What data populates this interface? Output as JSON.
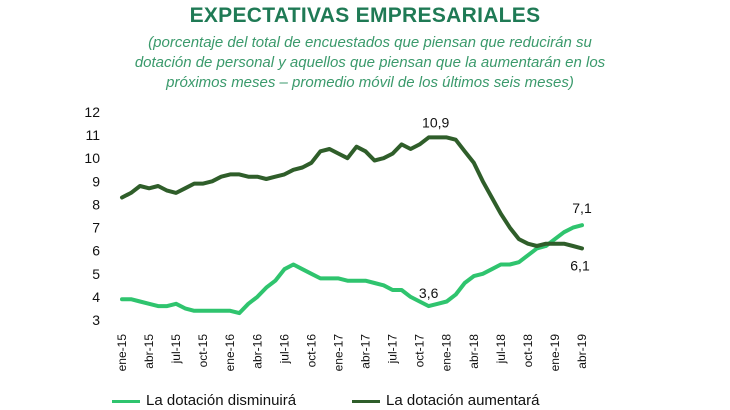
{
  "chart_data": {
    "type": "line",
    "title": "EXPECTATIVAS EMPRESARIALES",
    "subtitle": [
      "(porcentaje del total de encuestados que piensan que reducirán su",
      "dotación de personal y aquellos que piensan que la aumentarán en los",
      "próximos meses – promedio móvil de los últimos seis meses)"
    ],
    "ylim": [
      3,
      12
    ],
    "yticks": [
      3,
      4,
      5,
      6,
      7,
      8,
      9,
      10,
      11,
      12
    ],
    "xtick_labels": [
      "ene-15",
      "abr-15",
      "jul-15",
      "oct-15",
      "ene-16",
      "abr-16",
      "jul-16",
      "oct-16",
      "ene-17",
      "abr-17",
      "jul-17",
      "oct-17",
      "ene-18",
      "abr-18",
      "jul-18",
      "oct-18",
      "ene-19",
      "abr-19"
    ],
    "x": [
      "ene-15",
      "feb-15",
      "mar-15",
      "abr-15",
      "may-15",
      "jun-15",
      "jul-15",
      "ago-15",
      "sep-15",
      "oct-15",
      "nov-15",
      "dic-15",
      "ene-16",
      "feb-16",
      "mar-16",
      "abr-16",
      "may-16",
      "jun-16",
      "jul-16",
      "ago-16",
      "sep-16",
      "oct-16",
      "nov-16",
      "dic-16",
      "ene-17",
      "feb-17",
      "mar-17",
      "abr-17",
      "may-17",
      "jun-17",
      "jul-17",
      "ago-17",
      "sep-17",
      "oct-17",
      "nov-17",
      "dic-17",
      "ene-18",
      "feb-18",
      "mar-18",
      "abr-18",
      "may-18",
      "jun-18",
      "jul-18",
      "ago-18",
      "sep-18",
      "oct-18",
      "nov-18",
      "dic-18",
      "ene-19",
      "feb-19",
      "mar-19",
      "abr-19"
    ],
    "series": [
      {
        "name": "La dotación disminuirá",
        "color": "#2fc46e",
        "values": [
          3.9,
          3.9,
          3.8,
          3.7,
          3.6,
          3.6,
          3.7,
          3.5,
          3.4,
          3.4,
          3.4,
          3.4,
          3.4,
          3.3,
          3.7,
          4.0,
          4.4,
          4.7,
          5.2,
          5.4,
          5.2,
          5.0,
          4.8,
          4.8,
          4.8,
          4.7,
          4.7,
          4.7,
          4.6,
          4.5,
          4.3,
          4.3,
          4.0,
          3.8,
          3.6,
          3.7,
          3.8,
          4.1,
          4.6,
          4.9,
          5.0,
          5.2,
          5.4,
          5.4,
          5.5,
          5.8,
          6.1,
          6.2,
          6.5,
          6.8,
          7.0,
          7.1
        ]
      },
      {
        "name": "La dotación aumentará",
        "color": "#2f5e2a",
        "values": [
          8.3,
          8.5,
          8.8,
          8.7,
          8.8,
          8.6,
          8.5,
          8.7,
          8.9,
          8.9,
          9.0,
          9.2,
          9.3,
          9.3,
          9.2,
          9.2,
          9.1,
          9.2,
          9.3,
          9.5,
          9.6,
          9.8,
          10.3,
          10.4,
          10.2,
          10.0,
          10.5,
          10.3,
          9.9,
          10.0,
          10.2,
          10.6,
          10.4,
          10.6,
          10.9,
          10.9,
          10.9,
          10.8,
          10.3,
          9.8,
          9.0,
          8.3,
          7.6,
          7.0,
          6.5,
          6.3,
          6.2,
          6.3,
          6.3,
          6.3,
          6.2,
          6.1
        ]
      }
    ],
    "annotations": [
      {
        "text": "10,9",
        "series": 1,
        "index": 35
      },
      {
        "text": "3,6",
        "series": 0,
        "index": 34
      },
      {
        "text": "7,1",
        "series": 0,
        "index": 51
      },
      {
        "text": "6,1",
        "series": 1,
        "index": 51
      }
    ],
    "legend": [
      {
        "label": "La dotación disminuirá",
        "color": "#2fc46e"
      },
      {
        "label": "La dotación aumentará",
        "color": "#2f5e2a"
      }
    ]
  }
}
